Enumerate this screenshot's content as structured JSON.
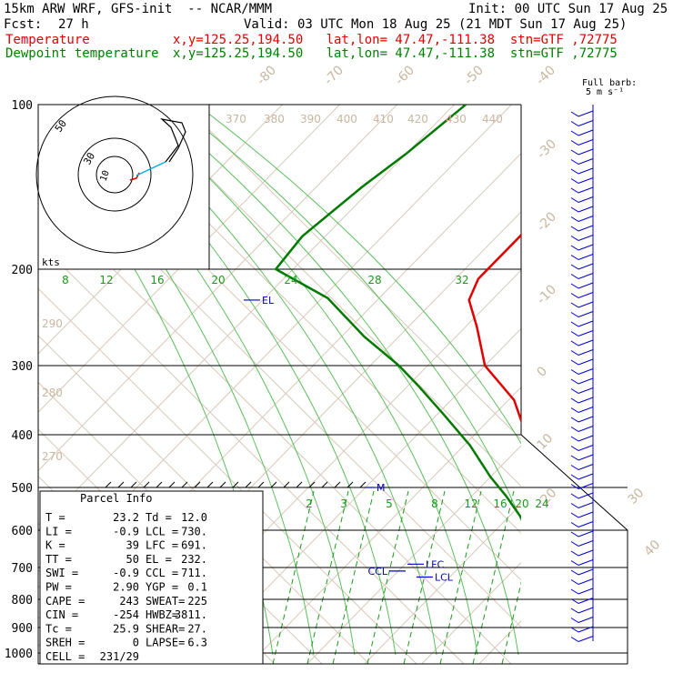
{
  "header": {
    "model": "15km ARW WRF, GFS-init  -- NCAR/MMM",
    "init": "Init: 00 UTC Sun 17 Aug 25",
    "fcst_label": "Fcst:",
    "fcst_value": "27 h",
    "valid": "Valid: 03 UTC Mon 18 Aug 25 (21 MDT Sun 17 Aug 25)",
    "temp_label": "Temperature",
    "temp_info": "x,y=125.25,194.50   lat,lon= 47.47,-111.38  stn=GTF ,72775",
    "dew_label": "Dewpoint temperature",
    "dew_info": "x,y=125.25,194.50   lat,lon= 47.47,-111.38  stn=GTF ,72775"
  },
  "barb_legend": {
    "line1": "Full barb:",
    "line2": "5 m s⁻¹"
  },
  "hodograph": {
    "units": "kts",
    "ring_labels": [
      "10",
      "30",
      "50"
    ]
  },
  "colors": {
    "temperature": "#e00000",
    "dewpoint": "#007a00",
    "annotation": "#0000cc",
    "isotherm": "#c9b6a0",
    "mixing_ratio": "#1a9a1a",
    "barb": "#0000cc"
  },
  "parcel_info": {
    "title": "Parcel Info",
    "rows": [
      [
        "T    =",
        "23.2",
        "Td =",
        "12.0"
      ],
      [
        "LI   =",
        "-0.9",
        "LCL =",
        "730."
      ],
      [
        "K    =",
        "39",
        "LFC =",
        "691."
      ],
      [
        "TT   =",
        "50",
        "EL  =",
        "232."
      ],
      [
        "SWI  =",
        "-0.9",
        "CCL =",
        "711."
      ],
      [
        "PW   =",
        "2.90",
        "YGP =",
        "0.1"
      ],
      [
        "CAPE =",
        "243",
        "SWEAT=",
        "225"
      ],
      [
        "CIN  =",
        "-254",
        "HWBZ=",
        "3811."
      ],
      [
        "Tc   =",
        "25.9",
        "SHEAR=",
        "27."
      ],
      [
        "SREH =",
        "0",
        "LAPSE=",
        "6.3"
      ],
      [
        "CELL =",
        "231/29",
        "",
        ""
      ]
    ]
  },
  "chart_data": {
    "type": "line",
    "title": "Skew-T log-P diagram",
    "ylabel": "Pressure (hPa)",
    "pressure_labels": [
      "100",
      "200",
      "300",
      "400",
      "500",
      "600",
      "700",
      "800",
      "900",
      "1000"
    ],
    "isotherm_labels": [
      "-80",
      "-70",
      "-60",
      "-50",
      "-40",
      "-30",
      "-20",
      "-10",
      "0",
      "10",
      "20",
      "30",
      "40"
    ],
    "theta_labels": [
      "370",
      "380",
      "390",
      "400",
      "410",
      "420",
      "430",
      "440",
      "290",
      "280",
      "270"
    ],
    "mixing_ratio_labels_top": [
      "8",
      "12",
      "16",
      "20",
      "24",
      "28",
      "32"
    ],
    "mixing_ratio_labels_bottom": [
      "2",
      "3",
      "5",
      "8",
      "12",
      "16",
      "20",
      "24"
    ],
    "series": [
      {
        "name": "Temperature",
        "points": [
          [
            100,
            -62
          ],
          [
            150,
            -58
          ],
          [
            180,
            -56
          ],
          [
            210,
            -56
          ],
          [
            232,
            -54
          ],
          [
            260,
            -48
          ],
          [
            300,
            -40
          ],
          [
            350,
            -29
          ],
          [
            400,
            -21
          ],
          [
            450,
            -15
          ],
          [
            500,
            -8
          ],
          [
            550,
            -2
          ],
          [
            600,
            3
          ],
          [
            650,
            7
          ],
          [
            700,
            11
          ],
          [
            730,
            13
          ],
          [
            800,
            17
          ],
          [
            880,
            23.2
          ]
        ]
      },
      {
        "name": "Dewpoint temperature",
        "points": [
          [
            100,
            -88
          ],
          [
            130,
            -90
          ],
          [
            150,
            -92
          ],
          [
            180,
            -94
          ],
          [
            200,
            -93
          ],
          [
            230,
            -79
          ],
          [
            270,
            -66
          ],
          [
            300,
            -55
          ],
          [
            330,
            -48
          ],
          [
            370,
            -39
          ],
          [
            420,
            -29
          ],
          [
            480,
            -20
          ],
          [
            520,
            -14
          ],
          [
            600,
            -4
          ],
          [
            650,
            3
          ],
          [
            700,
            10
          ],
          [
            730,
            10
          ],
          [
            780,
            11
          ],
          [
            840,
            12
          ],
          [
            880,
            12
          ]
        ]
      }
    ],
    "markers": [
      {
        "label": "EL",
        "p": 232
      },
      {
        "label": "LFC",
        "p": 691
      },
      {
        "label": "CCL",
        "p": 711
      },
      {
        "label": "LCL",
        "p": 730
      },
      {
        "label": "M",
        "p": 500
      }
    ]
  }
}
